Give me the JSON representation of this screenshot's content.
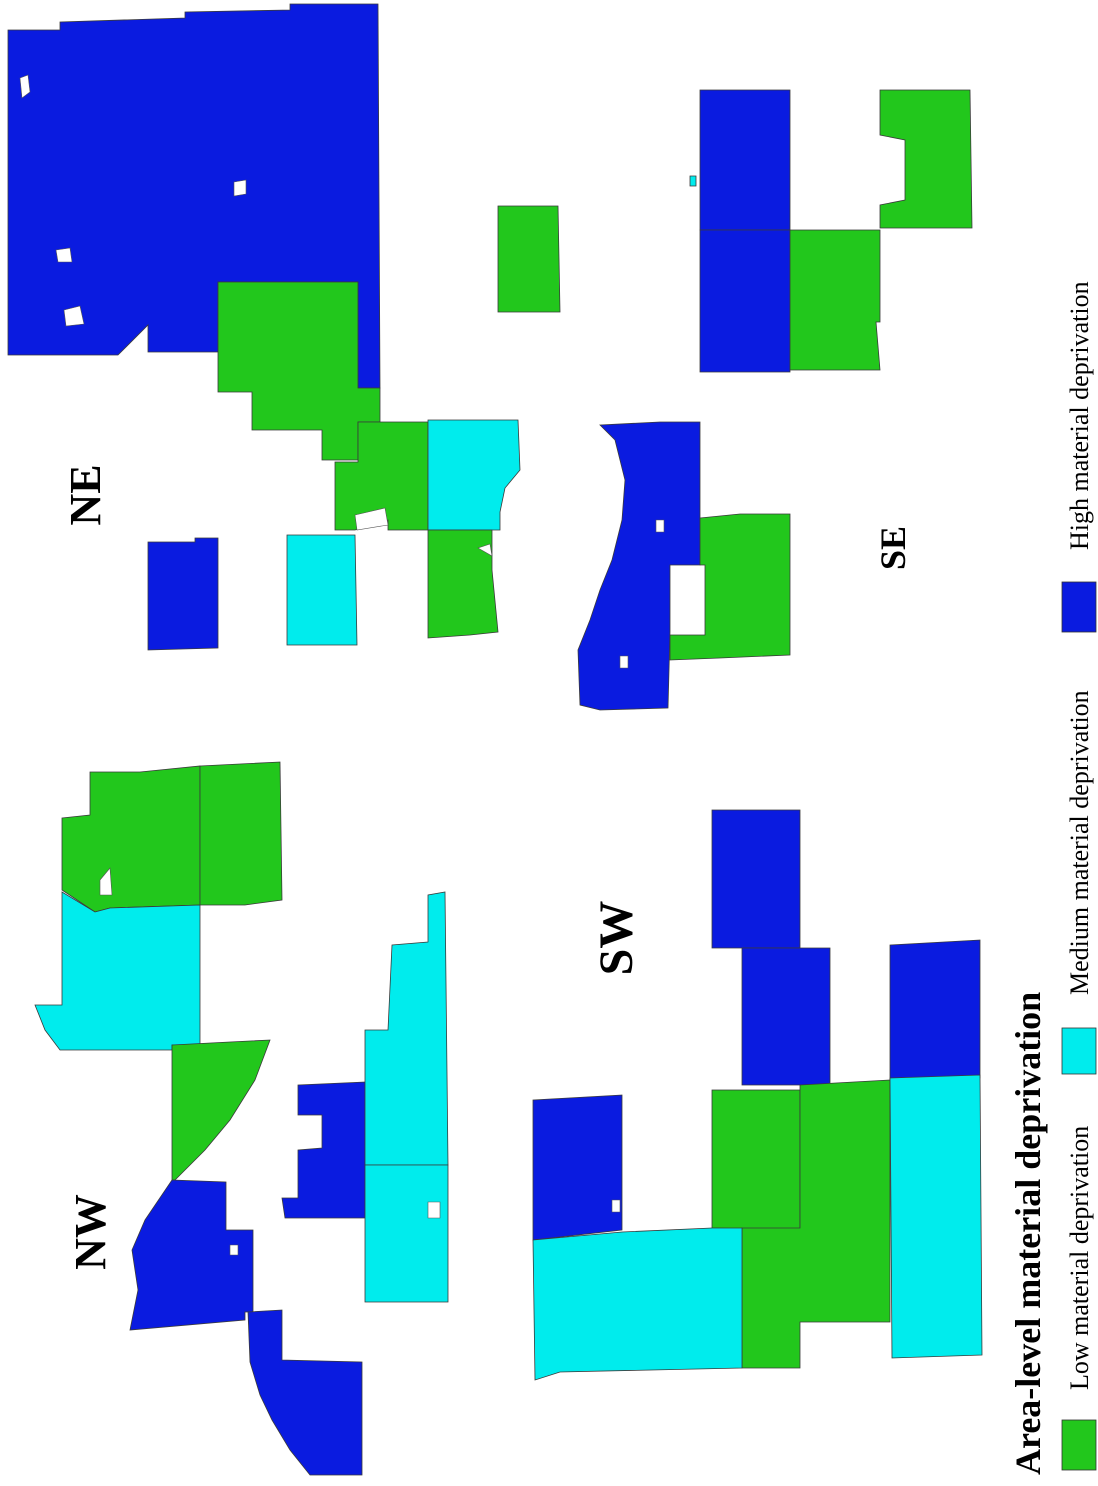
{
  "map": {
    "region_labels": {
      "ne": "NE",
      "se": "SE",
      "nw": "NW",
      "sw": "SW"
    },
    "legend": {
      "title": "Area-level material deprivation",
      "items": [
        {
          "label": "Low material deprivation",
          "color": "#22c71c"
        },
        {
          "label": "Medium material deprivation",
          "color": "#00eced"
        },
        {
          "label": "High material deprivation",
          "color": "#0a1be0"
        }
      ]
    },
    "colors": {
      "low": "#22c71c",
      "medium": "#00eced",
      "high": "#0a1be0"
    }
  }
}
